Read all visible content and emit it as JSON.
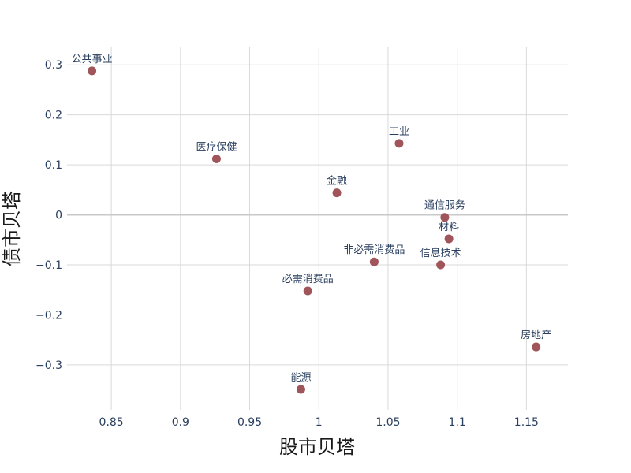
{
  "chart_data": {
    "type": "scatter",
    "xlabel": "股市贝塔",
    "ylabel": "债市贝塔",
    "xlim": [
      0.818,
      1.18
    ],
    "ylim": [
      -0.39,
      0.335
    ],
    "xticks": [
      0.85,
      0.9,
      0.95,
      1.0,
      1.05,
      1.1,
      1.15
    ],
    "xtick_labels": [
      "0.85",
      "0.9",
      "0.95",
      "1",
      "1.05",
      "1.1",
      "1.15"
    ],
    "yticks": [
      0.3,
      0.2,
      0.1,
      0,
      -0.1,
      -0.2,
      -0.3
    ],
    "ytick_labels": [
      "0.3",
      "0.2",
      "0.1",
      "0",
      "−0.1",
      "−0.2",
      "−0.3"
    ],
    "grid": true,
    "marker_color": "#a0555b",
    "text_color": "#2a3f5f",
    "points": [
      {
        "label": "公共事业",
        "x": 0.836,
        "y": 0.288
      },
      {
        "label": "医疗保健",
        "x": 0.926,
        "y": 0.112
      },
      {
        "label": "工业",
        "x": 1.058,
        "y": 0.143
      },
      {
        "label": "金融",
        "x": 1.013,
        "y": 0.044
      },
      {
        "label": "通信服务",
        "x": 1.091,
        "y": -0.005
      },
      {
        "label": "材料",
        "x": 1.094,
        "y": -0.048
      },
      {
        "label": "信息技术",
        "x": 1.088,
        "y": -0.1
      },
      {
        "label": "非必需消费品",
        "x": 1.04,
        "y": -0.094
      },
      {
        "label": "必需消费品",
        "x": 0.992,
        "y": -0.152
      },
      {
        "label": "房地产",
        "x": 1.157,
        "y": -0.264
      },
      {
        "label": "能源",
        "x": 0.987,
        "y": -0.349
      }
    ]
  }
}
